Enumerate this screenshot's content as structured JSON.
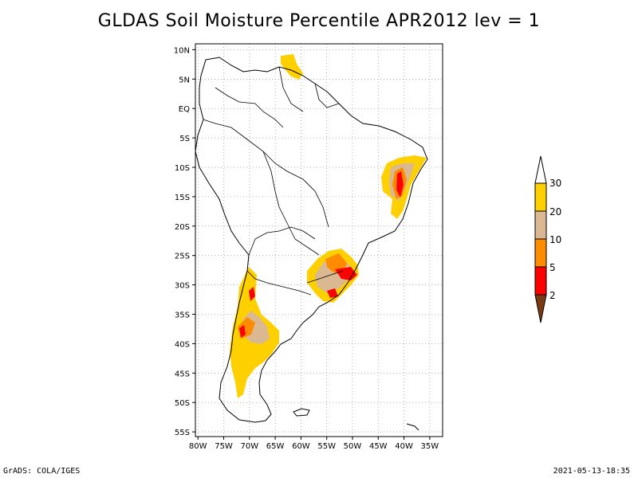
{
  "title": "GLDAS Soil Moisture Percentile APR2012 lev = 1",
  "footer": {
    "left": "GrADS: COLA/IGES",
    "right": "2021-05-13-18:35"
  },
  "map": {
    "lon_labels": [
      "80W",
      "75W",
      "70W",
      "65W",
      "60W",
      "55W",
      "50W",
      "45W",
      "40W",
      "35W"
    ],
    "lat_labels": [
      "10N",
      "5N",
      "EQ",
      "5S",
      "10S",
      "15S",
      "20S",
      "25S",
      "30S",
      "35S",
      "40S",
      "45S",
      "50S",
      "55S"
    ],
    "lon_values": [
      -80,
      -75,
      -70,
      -65,
      -60,
      -55,
      -50,
      -45,
      -40,
      -35
    ],
    "lat_values": [
      10,
      5,
      0,
      -5,
      -10,
      -15,
      -20,
      -25,
      -30,
      -35,
      -40,
      -45,
      -50,
      -55
    ],
    "lon_range": [
      -80.5,
      -32.5
    ],
    "lat_range": [
      -55.8,
      11
    ],
    "grid": true,
    "colors": {
      "lt2": "#7a3b12",
      "2_5": "#ff0000",
      "5_10": "#ff8c00",
      "10_20": "#d9b892",
      "20_30": "#ffd000"
    }
  },
  "colorbar": {
    "labels": [
      "30",
      "20",
      "10",
      "5",
      "2"
    ]
  }
}
